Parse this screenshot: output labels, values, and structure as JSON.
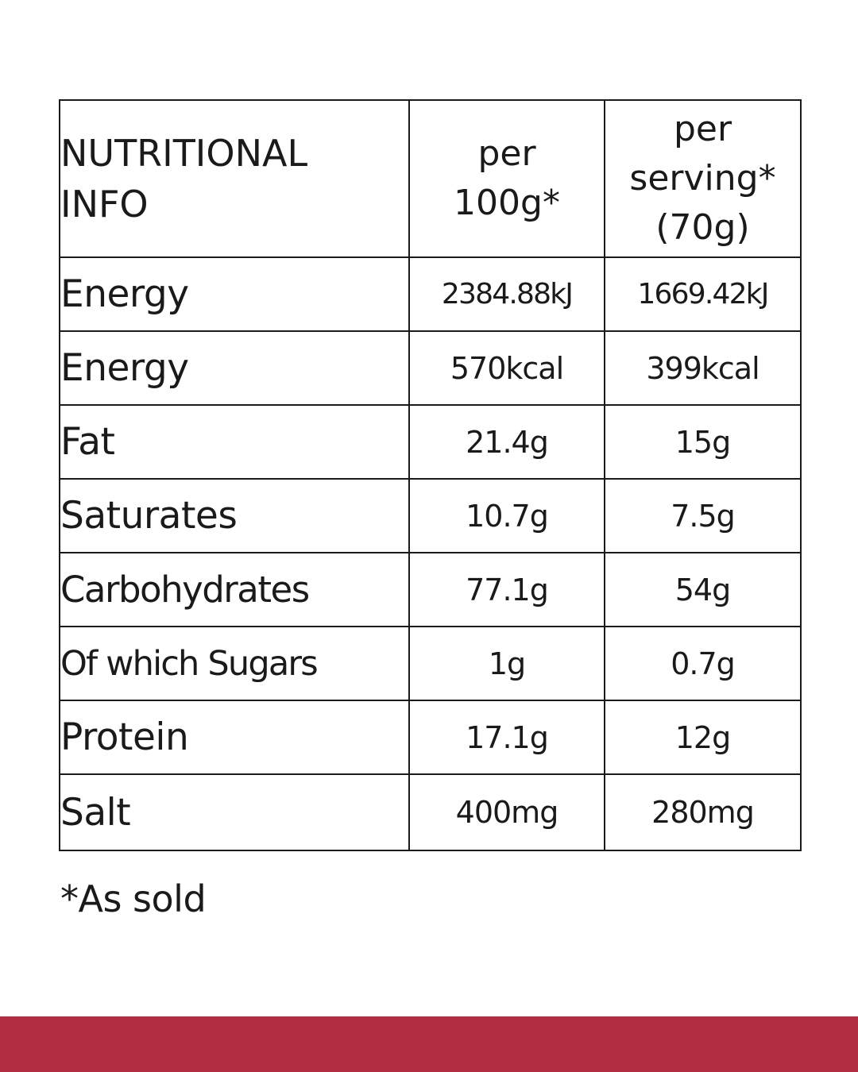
{
  "table": {
    "header": {
      "label_line1": "NUTRITIONAL",
      "label_line2": "INFO",
      "col1_line1": "per",
      "col1_line2": "100g*",
      "col2_line1": "per",
      "col2_line2": "serving*",
      "col2_line3": "(70g)"
    },
    "rows": [
      {
        "name": "Energy",
        "per100": "2384.88kJ",
        "perServing": "1669.42kJ"
      },
      {
        "name": "Energy",
        "per100": "570kcal",
        "perServing": "399kcal"
      },
      {
        "name": "Fat",
        "per100": "21.4g",
        "perServing": "15g"
      },
      {
        "name": "Saturates",
        "per100": "10.7g",
        "perServing": "7.5g"
      },
      {
        "name": "Carbohydrates",
        "per100": "77.1g",
        "perServing": "54g"
      },
      {
        "name": "Of which Sugars",
        "per100": "1g",
        "perServing": "0.7g"
      },
      {
        "name": "Protein",
        "per100": "17.1g",
        "perServing": "12g"
      },
      {
        "name": "Salt",
        "per100": "400mg",
        "perServing": "280mg"
      }
    ]
  },
  "footnote": "*As sold",
  "colors": {
    "footer_bar": "#b22d42",
    "text": "#1a1a1a",
    "background": "#ffffff"
  }
}
